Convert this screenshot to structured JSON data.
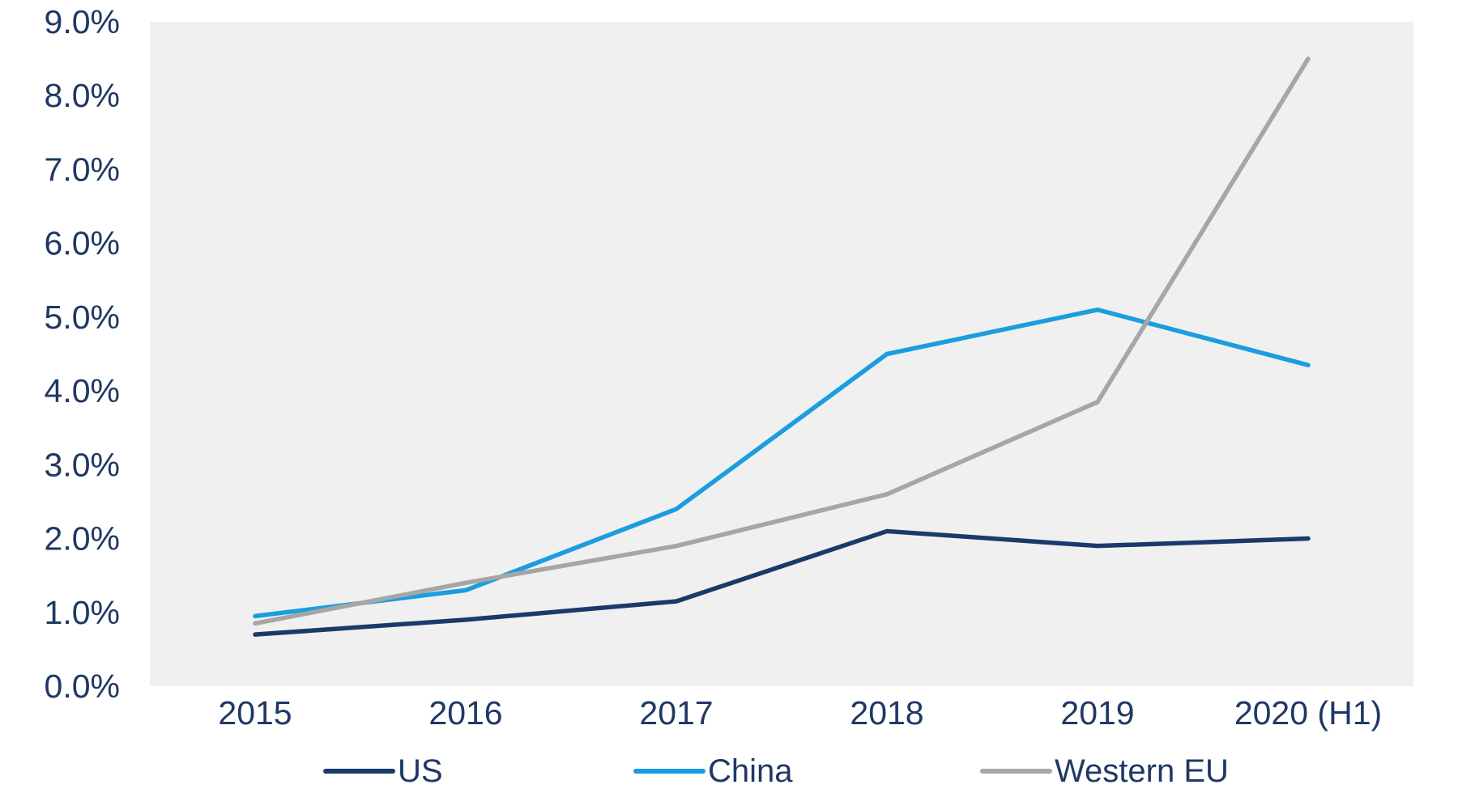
{
  "chart_data": {
    "type": "line",
    "title": "",
    "xlabel": "",
    "ylabel": "",
    "categories": [
      "2015",
      "2016",
      "2017",
      "2018",
      "2019",
      "2020 (H1)"
    ],
    "series": [
      {
        "name": "US",
        "color": "#1A3A6B",
        "values": [
          0.7,
          0.9,
          1.15,
          2.1,
          1.9,
          2.0
        ]
      },
      {
        "name": "China",
        "color": "#1B9DDF",
        "values": [
          0.95,
          1.3,
          2.4,
          4.5,
          5.1,
          4.35
        ]
      },
      {
        "name": "Western EU",
        "color": "#A6A6A6",
        "values": [
          0.85,
          1.4,
          1.9,
          2.6,
          3.85,
          8.5
        ]
      }
    ],
    "y_tick_labels": [
      "0.0%",
      "1.0%",
      "2.0%",
      "3.0%",
      "4.0%",
      "5.0%",
      "6.0%",
      "7.0%",
      "8.0%",
      "9.0%"
    ],
    "ylim": [
      0,
      9
    ],
    "y_tick_step": 1,
    "grid": false,
    "markers": false,
    "legend_position": "bottom",
    "plot_background": "#F0F0F0",
    "page_background": "#FFFFFF",
    "text_color": "#1F3864"
  }
}
